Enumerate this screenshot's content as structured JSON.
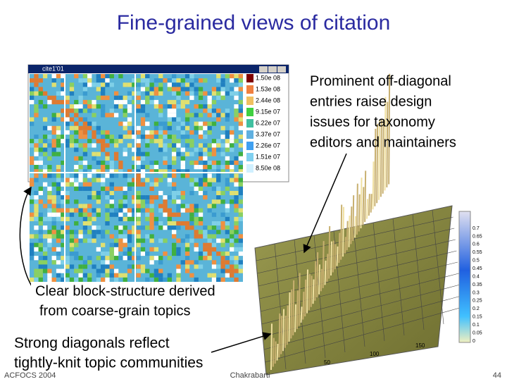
{
  "header": {
    "title": "Fine-grained views of citation"
  },
  "matrix_window": {
    "title": "cite1'01",
    "colorbar_labels": [
      "1.50e 08",
      "1.53e 08",
      "2.44e 08",
      "9.15e 07",
      "6.22e 07",
      "3.37e 07",
      "2.26e 07",
      "1.51e 07",
      "8.50e 08"
    ]
  },
  "surface_plot": {
    "colorbar_labels": [
      "0.7",
      "0.65",
      "0.6",
      "0.55",
      "0.5",
      "0.45",
      "0.4",
      "0.35",
      "0.3",
      "0.25",
      "0.2",
      "0.15",
      "0.1",
      "0.05",
      "0"
    ],
    "axis_labels": [
      "50",
      "100",
      "150"
    ]
  },
  "callouts": {
    "off_diagonal": [
      "Prominent off-diagonal",
      "entries raise design",
      "issues for taxonomy",
      "editors and maintainers"
    ],
    "block_structure": [
      "Clear block-structure derived",
      "from coarse-grain topics"
    ],
    "diagonals": [
      "Strong diagonals reflect",
      "tightly-knit topic communities"
    ]
  },
  "footer": {
    "left": "ACFOCS 2004",
    "center": "Chakrabarti",
    "page": "44"
  }
}
